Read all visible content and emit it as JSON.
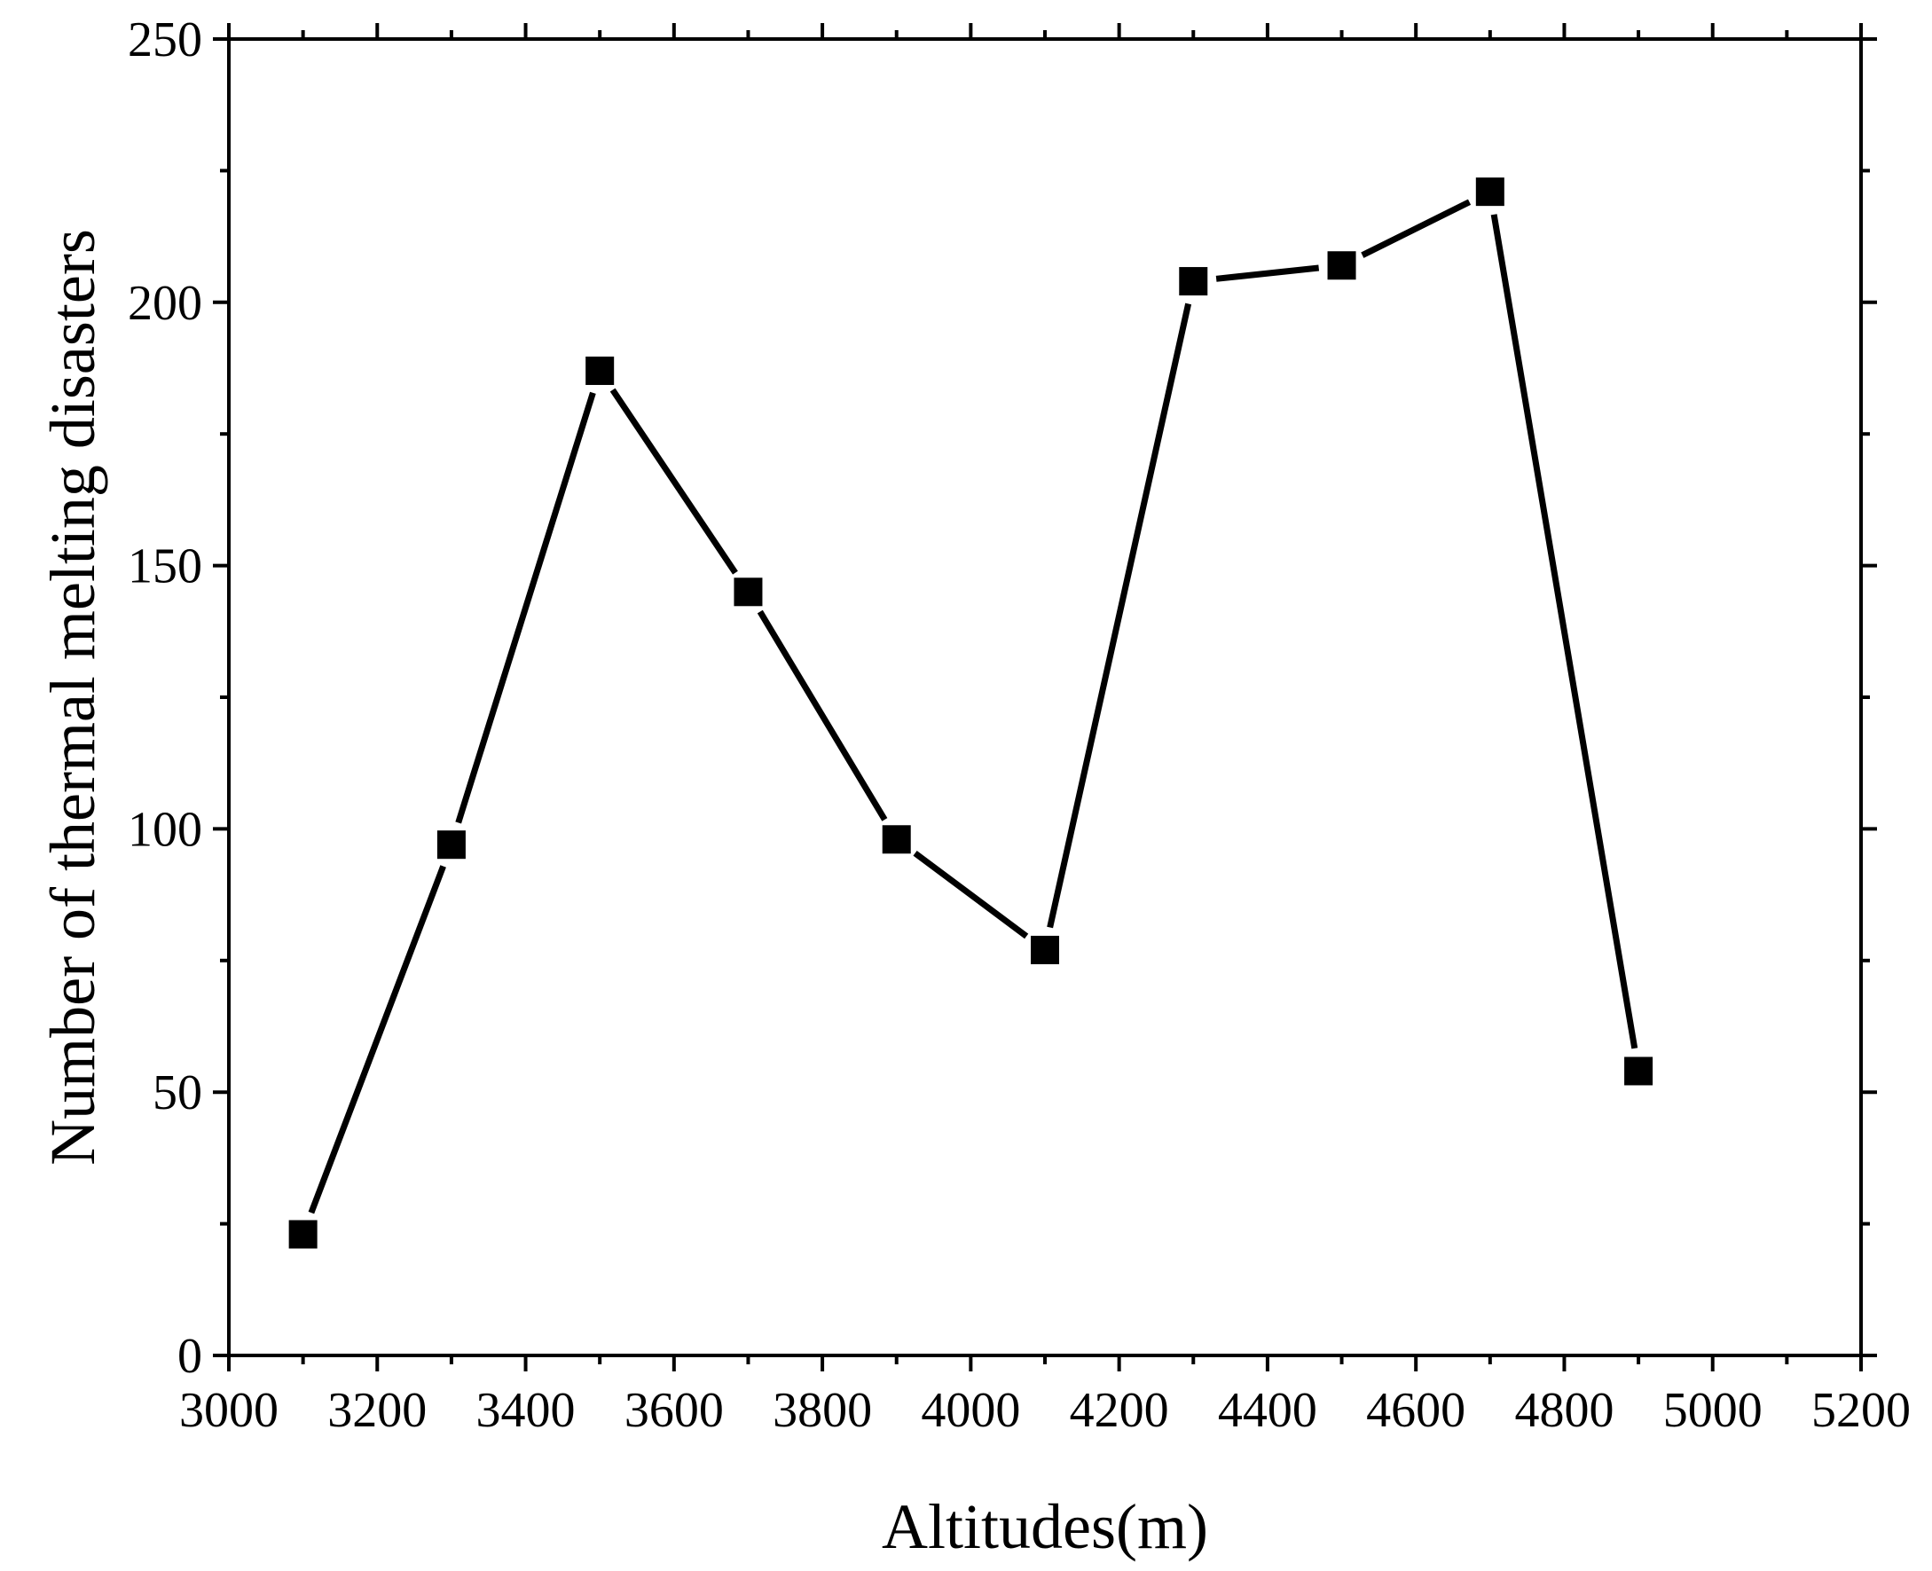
{
  "chart_data": {
    "type": "line",
    "title": "",
    "xlabel": "Altitudes(m)",
    "ylabel": "Number of thermal melting disasters",
    "xlim": [
      3000,
      5200
    ],
    "ylim": [
      0,
      250
    ],
    "xticks": [
      3000,
      3200,
      3400,
      3600,
      3800,
      4000,
      4200,
      4400,
      4600,
      4800,
      5000,
      5200
    ],
    "yticks": [
      0,
      50,
      100,
      150,
      200,
      250
    ],
    "grid": false,
    "legend": "none",
    "marker": "square",
    "series": [
      {
        "x": [
          3100,
          3300,
          3500,
          3700,
          3900,
          4100,
          4300,
          4500,
          4700,
          4900
        ],
        "y": [
          23,
          97,
          187,
          145,
          98,
          77,
          204,
          207,
          221,
          54
        ],
        "color": "#000000"
      }
    ]
  }
}
